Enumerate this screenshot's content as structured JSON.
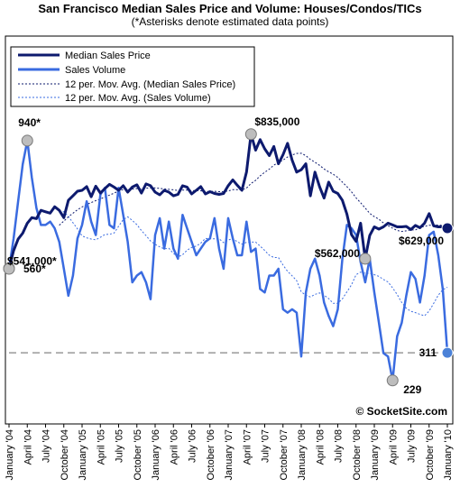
{
  "chart_data": {
    "type": "line",
    "title": "San Francisco Median Sales Price and Volume: Houses/Condos/TICs",
    "subtitle": "(*Asterisks denote estimated data points)",
    "watermark": "© SocketSite.com",
    "x_tick_labels": [
      "January '04",
      "April '04",
      "July '04",
      "October '04",
      "January '05",
      "April '05",
      "July '05",
      "October '05",
      "January '06",
      "April '06",
      "July '06",
      "October '06",
      "January '07",
      "April '07",
      "July '07",
      "October '07",
      "January '08",
      "April '08",
      "July '08",
      "October '08",
      "January '09",
      "April '09",
      "July '09",
      "October '09",
      "January '10"
    ],
    "series": [
      {
        "name": "Median Sales Price",
        "color": "#0d1a6e",
        "values": [
          541000,
          580000,
          605000,
          618000,
          640000,
          652000,
          650000,
          668000,
          665000,
          662000,
          676000,
          668000,
          652000,
          690000,
          700000,
          710000,
          712000,
          720000,
          698000,
          721000,
          706000,
          716000,
          725000,
          719000,
          712000,
          722000,
          708000,
          719000,
          724000,
          706000,
          726000,
          722000,
          708000,
          702000,
          712000,
          708000,
          700000,
          703000,
          722000,
          719000,
          704000,
          712000,
          720000,
          704000,
          709000,
          705000,
          703000,
          705000,
          722000,
          735000,
          723000,
          712000,
          752000,
          835000,
          800000,
          823000,
          803000,
          788000,
          808000,
          770000,
          790000,
          815000,
          778000,
          752000,
          757000,
          770000,
          700000,
          752000,
          720000,
          695000,
          730000,
          710000,
          705000,
          690000,
          660000,
          615000,
          600000,
          640000,
          562000,
          613000,
          632000,
          627000,
          632000,
          640000,
          636000,
          632000,
          632000,
          633000,
          626000,
          635000,
          630000,
          640000,
          661000,
          634000,
          632000,
          632000,
          629000
        ]
      },
      {
        "name": "Sales Volume",
        "color": "#3a6be0",
        "values": [
          560,
          650,
          760,
          870,
          940,
          830,
          740,
          690,
          690,
          700,
          680,
          640,
          560,
          480,
          540,
          650,
          690,
          760,
          700,
          660,
          780,
          800,
          690,
          680,
          800,
          720,
          640,
          520,
          540,
          550,
          520,
          470,
          660,
          710,
          620,
          700,
          620,
          590,
          720,
          680,
          640,
          600,
          620,
          640,
          650,
          710,
          620,
          560,
          710,
          650,
          600,
          600,
          700,
          610,
          620,
          500,
          490,
          540,
          540,
          560,
          440,
          430,
          440,
          430,
          300,
          490,
          560,
          590,
          540,
          460,
          420,
          390,
          440,
          590,
          690,
          680,
          660,
          580,
          520,
          590,
          490,
          400,
          310,
          300,
          229,
          360,
          400,
          480,
          550,
          530,
          460,
          540,
          660,
          670,
          600,
          500,
          311
        ]
      },
      {
        "name": "12 per. Mov. Avg. (Median Sales Price)",
        "color": "#0d1a6e",
        "dashed": true
      },
      {
        "name": "12 per. Mov. Avg. (Sales Volume)",
        "color": "#3a6be0",
        "dashed": true
      }
    ],
    "annotations": [
      {
        "text": "$541,000*",
        "series": 0,
        "index": 0
      },
      {
        "text": "560*",
        "series": 1,
        "index": 0
      },
      {
        "text": "940*",
        "series": 1,
        "index": 4
      },
      {
        "text": "$835,000",
        "series": 0,
        "index": 53
      },
      {
        "text": "$562,000",
        "series": 0,
        "index": 78
      },
      {
        "text": "229",
        "series": 1,
        "index": 84
      },
      {
        "text": "$629,000",
        "series": 0,
        "index": 96
      },
      {
        "text": "311",
        "series": 1,
        "index": 96
      }
    ],
    "reference_line": {
      "series": 1,
      "value": 311,
      "style": "dashed",
      "color": "#999999"
    },
    "price_range": [
      200000,
      1050000
    ],
    "volume_range": [
      100,
      1250
    ],
    "legend_position": "top-left",
    "grid": false
  }
}
